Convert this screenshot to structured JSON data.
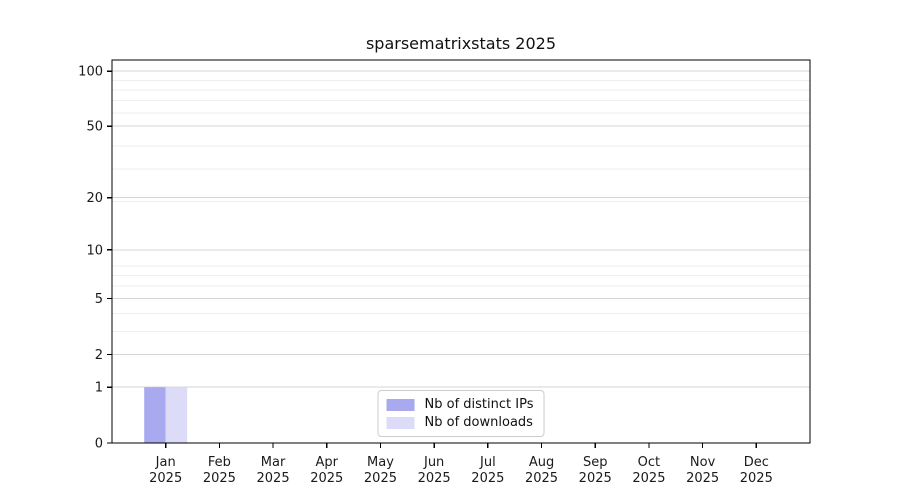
{
  "chart_data": {
    "type": "bar",
    "title": "sparsematrixstats 2025",
    "categories": [
      "Jan",
      "Feb",
      "Mar",
      "Apr",
      "May",
      "Jun",
      "Jul",
      "Aug",
      "Sep",
      "Oct",
      "Nov",
      "Dec"
    ],
    "category_year": "2025",
    "series": [
      {
        "name": "Nb of distinct IPs",
        "color": "#a9a9f0",
        "values": [
          1,
          0,
          0,
          0,
          0,
          0,
          0,
          0,
          0,
          0,
          0,
          0
        ]
      },
      {
        "name": "Nb of downloads",
        "color": "#dcdcf8",
        "values": [
          1,
          0,
          0,
          0,
          0,
          0,
          0,
          0,
          0,
          0,
          0,
          0
        ]
      }
    ],
    "yticks": [
      0,
      1,
      2,
      5,
      10,
      20,
      50,
      100
    ],
    "minor_gridlines": [
      3,
      4,
      6,
      7,
      8,
      19,
      29,
      39,
      59,
      69,
      79,
      89
    ],
    "ylim": [
      0,
      115
    ],
    "yscale": "log1p",
    "xlabel": "",
    "ylabel": "",
    "grid": true,
    "legend_position": "lower center",
    "colors": {
      "grid_major": "#d6d6d6",
      "grid_minor": "#eeeeee",
      "axis": "#000000",
      "tick_label": "#1a1a1a",
      "background": "#ffffff"
    }
  }
}
